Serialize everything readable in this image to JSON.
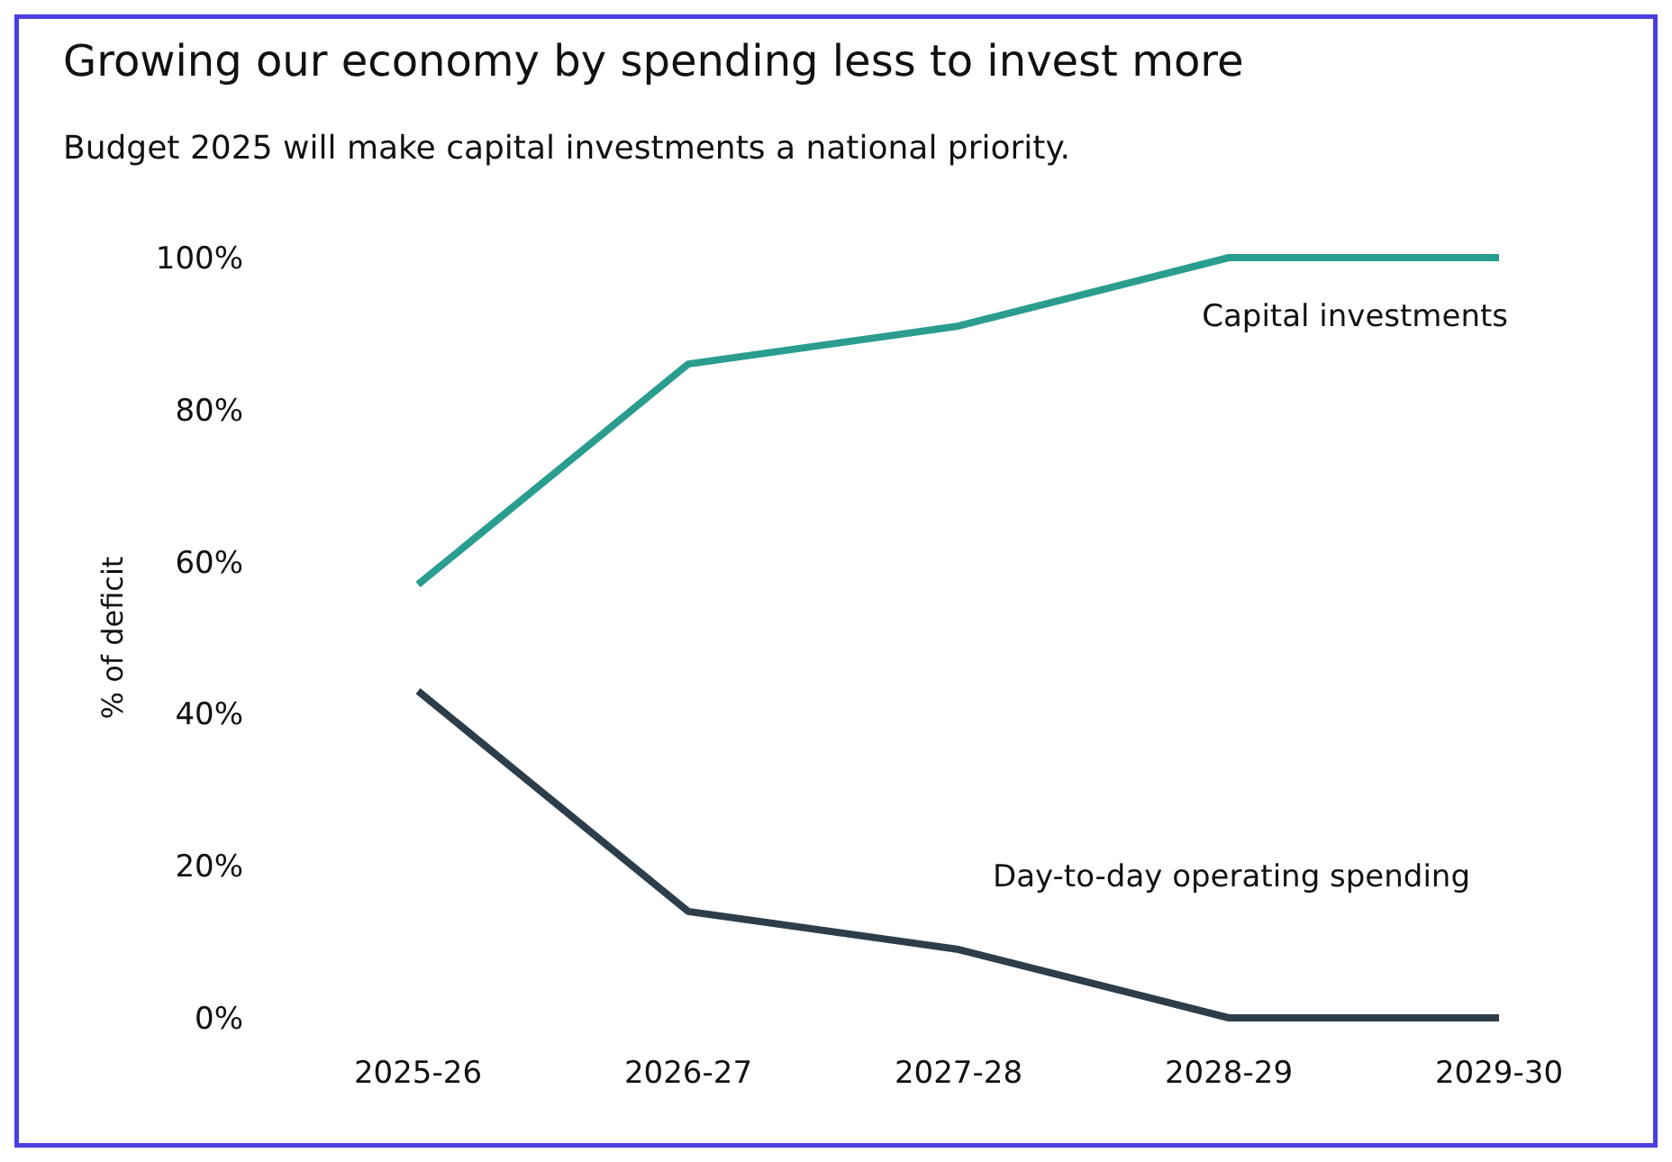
{
  "chart_data": {
    "type": "line",
    "title": "Growing our economy by spending less to invest more",
    "subtitle": "Budget 2025 will make capital investments a national priority.",
    "ylabel": "% of deficit",
    "categories": [
      "2025-26",
      "2026-27",
      "2027-28",
      "2028-29",
      "2029-30"
    ],
    "series": [
      {
        "name": "Capital investments",
        "color": "#2a9d8f",
        "values": [
          57,
          86,
          91,
          100,
          100
        ]
      },
      {
        "name": "Day-to-day operating spending",
        "color": "#2d3e4a",
        "values": [
          43,
          14,
          9,
          0,
          0
        ]
      }
    ],
    "ylim": [
      0,
      100
    ],
    "yticks": [
      {
        "value": 0,
        "label": "0%"
      },
      {
        "value": 20,
        "label": "20%"
      },
      {
        "value": 40,
        "label": "40%"
      },
      {
        "value": 60,
        "label": "60%"
      },
      {
        "value": 80,
        "label": "80%"
      },
      {
        "value": 100,
        "label": "100%"
      }
    ],
    "grid": false,
    "marker": "none",
    "line_style": "solid"
  }
}
